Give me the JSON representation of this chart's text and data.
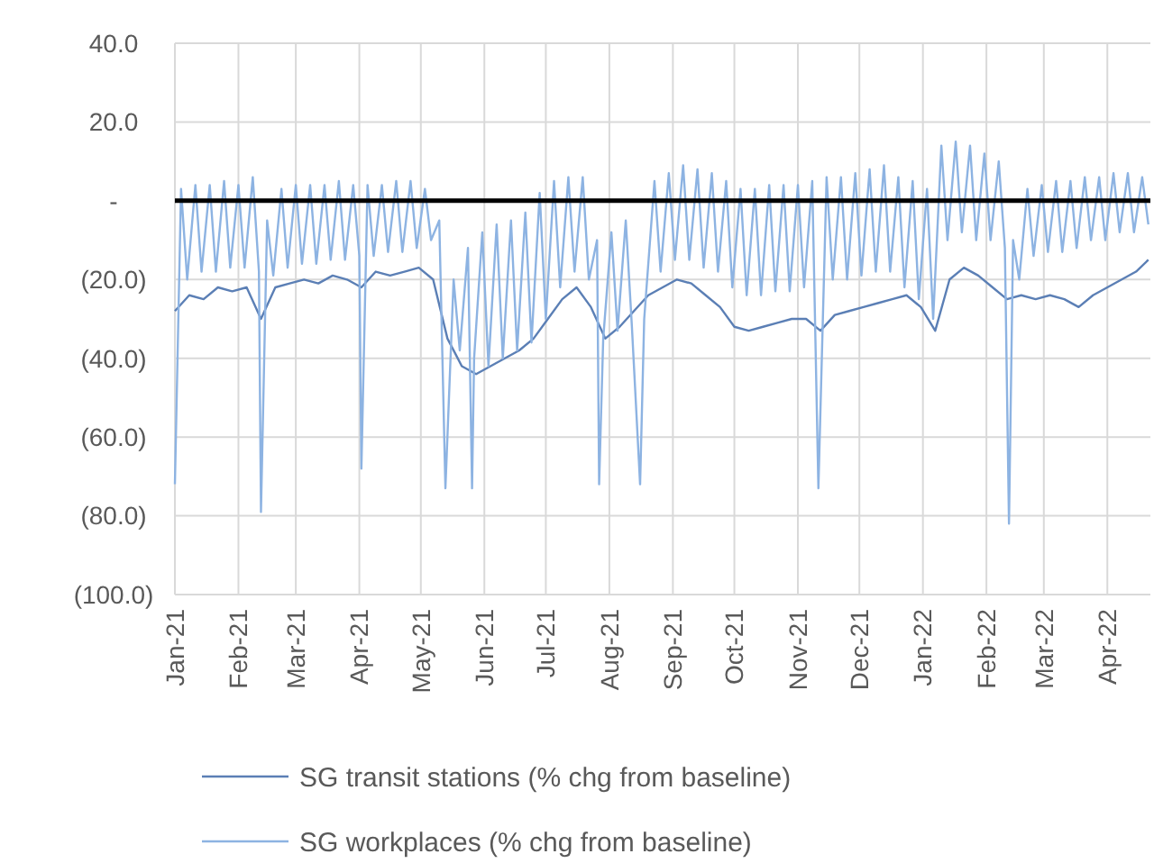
{
  "chart_data": {
    "type": "line",
    "xlim": [
      "2021-01-01",
      "2022-04-22"
    ],
    "ylim": [
      -100,
      40
    ],
    "yticks": [
      {
        "value": 40,
        "label": "40.0"
      },
      {
        "value": 20,
        "label": "20.0"
      },
      {
        "value": 0,
        "label": "-"
      },
      {
        "value": -20,
        "label": "(20.0)"
      },
      {
        "value": -40,
        "label": "(40.0)"
      },
      {
        "value": -60,
        "label": "(60.0)"
      },
      {
        "value": -80,
        "label": "(80.0)"
      },
      {
        "value": -100,
        "label": "(100.0)"
      }
    ],
    "xticks": [
      {
        "value": "2021-01-01",
        "label": "Jan-21"
      },
      {
        "value": "2021-02-01",
        "label": "Feb-21"
      },
      {
        "value": "2021-03-01",
        "label": "Mar-21"
      },
      {
        "value": "2021-04-01",
        "label": "Apr-21"
      },
      {
        "value": "2021-05-01",
        "label": "May-21"
      },
      {
        "value": "2021-06-01",
        "label": "Jun-21"
      },
      {
        "value": "2021-07-01",
        "label": "Jul-21"
      },
      {
        "value": "2021-08-01",
        "label": "Aug-21"
      },
      {
        "value": "2021-09-01",
        "label": "Sep-21"
      },
      {
        "value": "2021-10-01",
        "label": "Oct-21"
      },
      {
        "value": "2021-11-01",
        "label": "Nov-21"
      },
      {
        "value": "2021-12-01",
        "label": "Dec-21"
      },
      {
        "value": "2022-01-01",
        "label": "Jan-22"
      },
      {
        "value": "2022-02-01",
        "label": "Feb-22"
      },
      {
        "value": "2022-03-01",
        "label": "Mar-22"
      },
      {
        "value": "2022-04-01",
        "label": "Apr-22"
      }
    ],
    "grid": true,
    "legend": "bottom",
    "line_style": "solid",
    "ref_lines": [
      {
        "axis": "y",
        "value": 0,
        "color": "#000000"
      }
    ],
    "series": [
      {
        "name": "SG transit stations (% chg from baseline)",
        "color": "#5b7fb5",
        "x": [
          "2021-01-01",
          "2021-01-08",
          "2021-01-15",
          "2021-01-22",
          "2021-01-29",
          "2021-02-05",
          "2021-02-12",
          "2021-02-19",
          "2021-02-26",
          "2021-03-05",
          "2021-03-12",
          "2021-03-19",
          "2021-03-26",
          "2021-04-02",
          "2021-04-09",
          "2021-04-16",
          "2021-04-23",
          "2021-04-30",
          "2021-05-07",
          "2021-05-14",
          "2021-05-21",
          "2021-05-28",
          "2021-06-04",
          "2021-06-11",
          "2021-06-18",
          "2021-06-25",
          "2021-07-02",
          "2021-07-09",
          "2021-07-16",
          "2021-07-23",
          "2021-07-30",
          "2021-08-06",
          "2021-08-13",
          "2021-08-20",
          "2021-08-27",
          "2021-09-03",
          "2021-09-10",
          "2021-09-17",
          "2021-09-24",
          "2021-10-01",
          "2021-10-08",
          "2021-10-15",
          "2021-10-22",
          "2021-10-29",
          "2021-11-05",
          "2021-11-12",
          "2021-11-19",
          "2021-11-26",
          "2021-12-03",
          "2021-12-10",
          "2021-12-17",
          "2021-12-24",
          "2021-12-31",
          "2022-01-07",
          "2022-01-14",
          "2022-01-21",
          "2022-01-28",
          "2022-02-04",
          "2022-02-11",
          "2022-02-18",
          "2022-02-25",
          "2022-03-04",
          "2022-03-11",
          "2022-03-18",
          "2022-03-25",
          "2022-04-01",
          "2022-04-08",
          "2022-04-15",
          "2022-04-21"
        ],
        "values": [
          -28,
          -24,
          -25,
          -22,
          -23,
          -22,
          -30,
          -22,
          -21,
          -20,
          -21,
          -19,
          -20,
          -22,
          -18,
          -19,
          -18,
          -17,
          -20,
          -35,
          -42,
          -44,
          -42,
          -40,
          -38,
          -35,
          -30,
          -25,
          -22,
          -27,
          -35,
          -32,
          -28,
          -24,
          -22,
          -20,
          -21,
          -24,
          -27,
          -32,
          -33,
          -32,
          -31,
          -30,
          -30,
          -33,
          -29,
          -28,
          -27,
          -26,
          -25,
          -24,
          -27,
          -33,
          -20,
          -17,
          -19,
          -22,
          -25,
          -24,
          -25,
          -24,
          -25,
          -27,
          -24,
          -22,
          -20,
          -18,
          -15
        ]
      },
      {
        "name": "SG workplaces (% chg from baseline)",
        "color": "#8db3e2",
        "x": [
          "2021-01-01",
          "2021-01-04",
          "2021-01-07",
          "2021-01-11",
          "2021-01-14",
          "2021-01-18",
          "2021-01-21",
          "2021-01-25",
          "2021-01-28",
          "2021-02-01",
          "2021-02-04",
          "2021-02-08",
          "2021-02-11",
          "2021-02-12",
          "2021-02-15",
          "2021-02-18",
          "2021-02-22",
          "2021-02-25",
          "2021-03-01",
          "2021-03-04",
          "2021-03-08",
          "2021-03-11",
          "2021-03-15",
          "2021-03-18",
          "2021-03-22",
          "2021-03-25",
          "2021-03-29",
          "2021-04-01",
          "2021-04-02",
          "2021-04-05",
          "2021-04-08",
          "2021-04-12",
          "2021-04-15",
          "2021-04-19",
          "2021-04-22",
          "2021-04-26",
          "2021-04-29",
          "2021-05-03",
          "2021-05-06",
          "2021-05-10",
          "2021-05-13",
          "2021-05-17",
          "2021-05-20",
          "2021-05-24",
          "2021-05-26",
          "2021-05-27",
          "2021-05-31",
          "2021-06-03",
          "2021-06-07",
          "2021-06-10",
          "2021-06-14",
          "2021-06-17",
          "2021-06-21",
          "2021-06-24",
          "2021-06-28",
          "2021-07-01",
          "2021-07-05",
          "2021-07-08",
          "2021-07-12",
          "2021-07-15",
          "2021-07-19",
          "2021-07-22",
          "2021-07-26",
          "2021-07-27",
          "2021-07-29",
          "2021-08-02",
          "2021-08-05",
          "2021-08-09",
          "2021-08-12",
          "2021-08-16",
          "2021-08-18",
          "2021-08-23",
          "2021-08-26",
          "2021-08-30",
          "2021-09-02",
          "2021-09-06",
          "2021-09-09",
          "2021-09-13",
          "2021-09-16",
          "2021-09-20",
          "2021-09-23",
          "2021-09-27",
          "2021-09-30",
          "2021-10-04",
          "2021-10-07",
          "2021-10-11",
          "2021-10-14",
          "2021-10-18",
          "2021-10-21",
          "2021-10-25",
          "2021-10-28",
          "2021-11-01",
          "2021-11-04",
          "2021-11-08",
          "2021-11-11",
          "2021-11-15",
          "2021-11-18",
          "2021-11-22",
          "2021-11-25",
          "2021-11-29",
          "2021-12-02",
          "2021-12-06",
          "2021-12-09",
          "2021-12-13",
          "2021-12-16",
          "2021-12-20",
          "2021-12-23",
          "2021-12-27",
          "2021-12-30",
          "2022-01-03",
          "2022-01-06",
          "2022-01-10",
          "2022-01-13",
          "2022-01-17",
          "2022-01-20",
          "2022-01-24",
          "2022-01-27",
          "2022-01-31",
          "2022-02-03",
          "2022-02-07",
          "2022-02-10",
          "2022-02-12",
          "2022-02-14",
          "2022-02-17",
          "2022-02-21",
          "2022-02-24",
          "2022-02-28",
          "2022-03-03",
          "2022-03-07",
          "2022-03-10",
          "2022-03-14",
          "2022-03-17",
          "2022-03-21",
          "2022-03-24",
          "2022-03-28",
          "2022-03-31",
          "2022-04-04",
          "2022-04-07",
          "2022-04-11",
          "2022-04-14",
          "2022-04-18",
          "2022-04-21"
        ],
        "values": [
          -72,
          3,
          -20,
          4,
          -18,
          4,
          -18,
          5,
          -17,
          4,
          -17,
          6,
          -18,
          -79,
          -5,
          -19,
          3,
          -17,
          4,
          -16,
          4,
          -16,
          4,
          -15,
          5,
          -15,
          4,
          -14,
          -68,
          4,
          -14,
          4,
          -13,
          5,
          -13,
          5,
          -12,
          3,
          -10,
          -5,
          -73,
          -20,
          -38,
          -12,
          -73,
          -40,
          -8,
          -42,
          -6,
          -40,
          -5,
          -38,
          -3,
          -36,
          2,
          -30,
          5,
          -22,
          6,
          -18,
          6,
          -20,
          -10,
          -72,
          -35,
          -8,
          -33,
          -5,
          -32,
          -72,
          -30,
          5,
          -18,
          7,
          -15,
          9,
          -15,
          8,
          -17,
          7,
          -18,
          5,
          -22,
          3,
          -24,
          3,
          -24,
          4,
          -23,
          4,
          -23,
          4,
          -22,
          5,
          -73,
          6,
          -20,
          6,
          -20,
          7,
          -19,
          8,
          -18,
          9,
          -18,
          6,
          -22,
          5,
          -25,
          3,
          -30,
          14,
          -10,
          15,
          -8,
          14,
          -10,
          12,
          -10,
          10,
          -12,
          -82,
          -10,
          -20,
          3,
          -14,
          4,
          -13,
          5,
          -13,
          5,
          -12,
          6,
          -10,
          6,
          -10,
          7,
          -8,
          7,
          -8,
          6,
          -6
        ]
      }
    ]
  }
}
